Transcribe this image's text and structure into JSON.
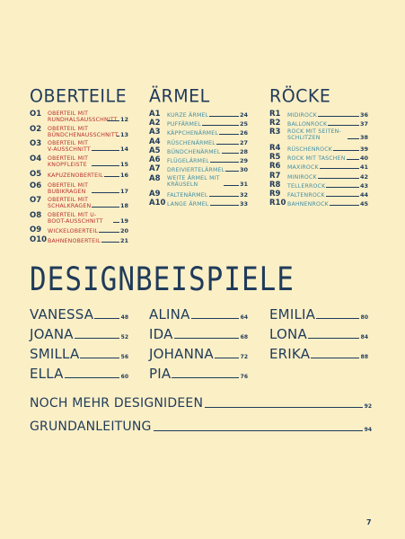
{
  "oberteile": {
    "title": "OBERTEILE",
    "items": [
      {
        "num": "O1",
        "label": "OBERTEIL MIT RUNDHALSAUSSCHNITT",
        "page": "12"
      },
      {
        "num": "O2",
        "label": "OBERTEIL MIT BÜNDCHENAUSSCHNITT",
        "page": "13"
      },
      {
        "num": "O3",
        "label": "OBERTEIL MIT V-AUSSCHNITT",
        "page": "14"
      },
      {
        "num": "O4",
        "label": "OBERTEIL MIT KNOPFLEISTE",
        "page": "15"
      },
      {
        "num": "O5",
        "label": "KAPUZENOBERTEIL",
        "page": "16"
      },
      {
        "num": "O6",
        "label": "OBERTEIL MIT BUBIKRAGEN",
        "page": "17"
      },
      {
        "num": "O7",
        "label": "OBERTEIL MIT SCHALKRAGEN",
        "page": "18"
      },
      {
        "num": "O8",
        "label": "OBERTEIL MIT U-BOOT-AUSSCHNITT",
        "page": "19"
      },
      {
        "num": "O9",
        "label": "WICKELOBERTEIL",
        "page": "20"
      },
      {
        "num": "O10",
        "label": "BAHNENOBERTEIL",
        "page": "21"
      }
    ]
  },
  "aermel": {
    "title": "ÄRMEL",
    "items": [
      {
        "num": "A1",
        "label": "KURZE ÄRMEL",
        "page": "24"
      },
      {
        "num": "A2",
        "label": "PUFFÄRMEL",
        "page": "25"
      },
      {
        "num": "A3",
        "label": "KÄPPCHENÄRMEL",
        "page": "26"
      },
      {
        "num": "A4",
        "label": "RÜSCHENÄRMEL",
        "page": "27"
      },
      {
        "num": "A5",
        "label": "BÜNDCHENÄRMEL",
        "page": "28"
      },
      {
        "num": "A6",
        "label": "FLÜGELÄRMEL",
        "page": "29"
      },
      {
        "num": "A7",
        "label": "DREIVIERTELÄRMEL",
        "page": "30"
      },
      {
        "num": "A8",
        "label": "WEITE ÄRMEL MIT KRÄUSELN",
        "page": "31"
      },
      {
        "num": "A9",
        "label": "FALTENÄRMEL",
        "page": "32"
      },
      {
        "num": "A10",
        "label": "LANGE ÄRMEL",
        "page": "33"
      }
    ]
  },
  "roecke": {
    "title": "RÖCKE",
    "items": [
      {
        "num": "R1",
        "label": "MIDIROCK",
        "page": "36"
      },
      {
        "num": "R2",
        "label": "BALLONROCK",
        "page": "37"
      },
      {
        "num": "R3",
        "label": "ROCK MIT SEITEN-SCHLITZEN",
        "page": "38"
      },
      {
        "num": "R4",
        "label": "RÜSCHENROCK",
        "page": "39"
      },
      {
        "num": "R5",
        "label": "ROCK MIT TASCHEN",
        "page": "40"
      },
      {
        "num": "R6",
        "label": "MAXIROCK",
        "page": "41"
      },
      {
        "num": "R7",
        "label": "MINIROCK",
        "page": "42"
      },
      {
        "num": "R8",
        "label": "TELLERROCK",
        "page": "43"
      },
      {
        "num": "R9",
        "label": "FALTENROCK",
        "page": "44"
      },
      {
        "num": "R10",
        "label": "BAHNENROCK",
        "page": "45"
      }
    ]
  },
  "designbeispiele": {
    "title": "DESIGNBEISPIELE",
    "col1": [
      {
        "name": "VANESSA",
        "page": "48"
      },
      {
        "name": "JOANA",
        "page": "52"
      },
      {
        "name": "SMILLA",
        "page": "56"
      },
      {
        "name": "ELLA",
        "page": "60"
      }
    ],
    "col2": [
      {
        "name": "ALINA",
        "page": "64"
      },
      {
        "name": "IDA",
        "page": "68"
      },
      {
        "name": "JOHANNA",
        "page": "72"
      },
      {
        "name": "PIA",
        "page": "76"
      }
    ],
    "col3": [
      {
        "name": "EMILIA",
        "page": "80"
      },
      {
        "name": "LONA",
        "page": "84"
      },
      {
        "name": "ERIKA",
        "page": "88"
      }
    ]
  },
  "more": [
    {
      "name": "NOCH MEHR DESIGNIDEEN",
      "page": "92"
    },
    {
      "name": "GRUNDANLEITUNG",
      "page": "94"
    }
  ],
  "page_number": "7",
  "colors": {
    "background": "#fbefc6",
    "dark_blue": "#1f3b5a",
    "red": "#b8322c",
    "teal": "#3f8fa4"
  }
}
